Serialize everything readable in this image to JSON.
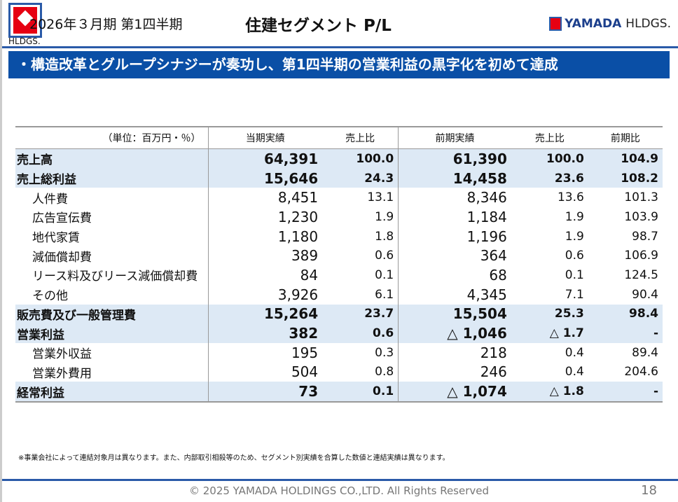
{
  "header": {
    "logo_text": "HLDGS.",
    "period": "2026年３月期 第1四半期",
    "title": "住建セグメント P/L",
    "brand_bold": "YAMADA",
    "brand_rest": "HLDGS."
  },
  "banner": "・構造改革とグループシナジーが奏功し、第1四半期の営業利益の黒字化を初めて達成",
  "table": {
    "headers": [
      "（単位：百万円・％）",
      "当期実績",
      "売上比",
      "前期実績",
      "売上比",
      "前期比"
    ],
    "rows": [
      {
        "label": "売上高",
        "hl": true,
        "v": [
          "64,391",
          "100.0",
          "61,390",
          "100.0",
          "104.9"
        ]
      },
      {
        "label": "売上総利益",
        "hl": true,
        "v": [
          "15,646",
          "24.3",
          "14,458",
          "23.6",
          "108.2"
        ]
      },
      {
        "label": "人件費",
        "v": [
          "8,451",
          "13.1",
          "8,346",
          "13.6",
          "101.3"
        ]
      },
      {
        "label": "広告宣伝費",
        "v": [
          "1,230",
          "1.9",
          "1,184",
          "1.9",
          "103.9"
        ]
      },
      {
        "label": "地代家賃",
        "v": [
          "1,180",
          "1.8",
          "1,196",
          "1.9",
          "98.7"
        ]
      },
      {
        "label": "減価償却費",
        "v": [
          "389",
          "0.6",
          "364",
          "0.6",
          "106.9"
        ]
      },
      {
        "label": "リース料及びリース減価償却費",
        "v": [
          "84",
          "0.1",
          "68",
          "0.1",
          "124.5"
        ]
      },
      {
        "label": "その他",
        "v": [
          "3,926",
          "6.1",
          "4,345",
          "7.1",
          "90.4"
        ]
      },
      {
        "label": "販売費及び一般管理費",
        "hl": true,
        "v": [
          "15,264",
          "23.7",
          "15,504",
          "25.3",
          "98.4"
        ]
      },
      {
        "label": "営業利益",
        "hl": true,
        "v": [
          "382",
          "0.6",
          "△ 1,046",
          "△ 1.7",
          "-"
        ]
      },
      {
        "label": "営業外収益",
        "v": [
          "195",
          "0.3",
          "218",
          "0.4",
          "89.4"
        ]
      },
      {
        "label": "営業外費用",
        "v": [
          "504",
          "0.8",
          "246",
          "0.4",
          "204.6"
        ]
      },
      {
        "label": "経常利益",
        "hl": true,
        "v": [
          "73",
          "0.1",
          "△ 1,074",
          "△ 1.8",
          "-"
        ]
      }
    ]
  },
  "note": "※事業会社によって連結対象月は異なります。また、内部取引相殺等のため、セグメント別実績を合算した数値と連結実績は異なります。",
  "footer": {
    "copyright": "© 2025 YAMADA HOLDINGS CO.,LTD. All Rights Reserved",
    "page": "18"
  }
}
